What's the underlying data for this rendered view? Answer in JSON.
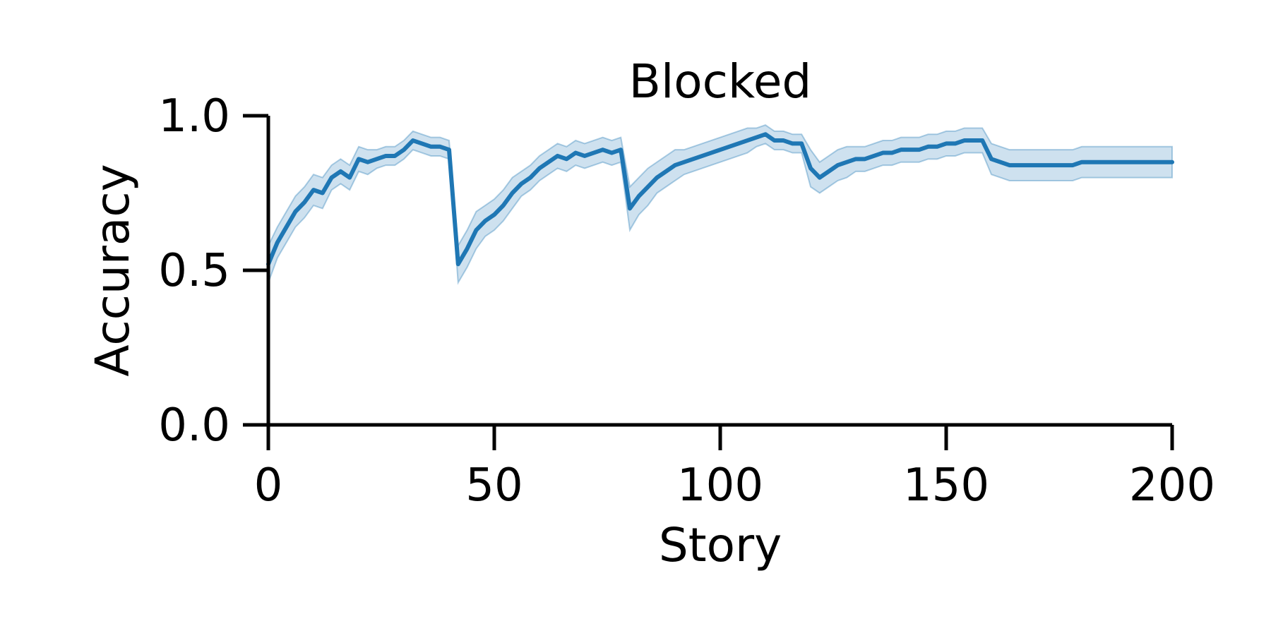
{
  "chart_data": {
    "type": "line",
    "title": "Blocked",
    "xlabel": "Story",
    "ylabel": "Accuracy",
    "xlim": [
      0,
      200
    ],
    "ylim": [
      0,
      1
    ],
    "x_ticks": [
      0,
      50,
      100,
      150,
      200
    ],
    "x_tick_labels": [
      "0",
      "50",
      "100",
      "150",
      "200"
    ],
    "y_ticks": [
      0.0,
      0.5,
      1.0
    ],
    "y_tick_labels": [
      "0.0",
      "0.5",
      "1.0"
    ],
    "grid": false,
    "colors": {
      "line": "#1f77b4",
      "band": "#1f77b4",
      "axis": "#000000"
    },
    "series": [
      {
        "x_start": 0,
        "x_step": 2,
        "values": [
          0.52,
          0.59,
          0.64,
          0.69,
          0.72,
          0.76,
          0.75,
          0.8,
          0.82,
          0.8,
          0.86,
          0.85,
          0.86,
          0.87,
          0.87,
          0.89,
          0.92,
          0.91,
          0.9,
          0.9,
          0.89,
          0.52,
          0.57,
          0.63,
          0.66,
          0.68,
          0.71,
          0.75,
          0.78,
          0.8,
          0.83,
          0.85,
          0.87,
          0.86,
          0.88,
          0.87,
          0.88,
          0.89,
          0.88,
          0.89,
          0.7,
          0.74,
          0.77,
          0.8,
          0.82,
          0.84,
          0.85,
          0.86,
          0.87,
          0.88,
          0.89,
          0.9,
          0.91,
          0.92,
          0.93,
          0.94,
          0.92,
          0.92,
          0.91,
          0.91,
          0.83,
          0.8,
          0.82,
          0.84,
          0.85,
          0.86,
          0.86,
          0.87,
          0.88,
          0.88,
          0.89,
          0.89,
          0.89,
          0.9,
          0.9,
          0.91,
          0.91,
          0.92,
          0.92,
          0.92,
          0.86,
          0.85,
          0.84,
          0.84,
          0.84,
          0.84,
          0.84,
          0.84,
          0.84,
          0.84,
          0.85,
          0.85,
          0.85,
          0.85,
          0.85,
          0.85,
          0.85,
          0.85,
          0.85,
          0.85,
          0.85
        ],
        "ci_halfwidth": [
          0.06,
          0.05,
          0.05,
          0.05,
          0.05,
          0.05,
          0.05,
          0.04,
          0.04,
          0.04,
          0.04,
          0.04,
          0.03,
          0.03,
          0.03,
          0.03,
          0.03,
          0.03,
          0.03,
          0.03,
          0.03,
          0.06,
          0.06,
          0.06,
          0.05,
          0.05,
          0.05,
          0.05,
          0.04,
          0.04,
          0.04,
          0.04,
          0.04,
          0.04,
          0.04,
          0.04,
          0.04,
          0.04,
          0.04,
          0.04,
          0.07,
          0.06,
          0.06,
          0.05,
          0.05,
          0.05,
          0.04,
          0.04,
          0.04,
          0.04,
          0.04,
          0.04,
          0.04,
          0.04,
          0.03,
          0.03,
          0.03,
          0.03,
          0.03,
          0.03,
          0.06,
          0.05,
          0.05,
          0.05,
          0.05,
          0.04,
          0.04,
          0.04,
          0.04,
          0.04,
          0.04,
          0.04,
          0.04,
          0.04,
          0.04,
          0.04,
          0.04,
          0.04,
          0.04,
          0.04,
          0.05,
          0.05,
          0.05,
          0.05,
          0.05,
          0.05,
          0.05,
          0.05,
          0.05,
          0.05,
          0.05,
          0.05,
          0.05,
          0.05,
          0.05,
          0.05,
          0.05,
          0.05,
          0.05,
          0.05,
          0.05
        ]
      }
    ]
  }
}
